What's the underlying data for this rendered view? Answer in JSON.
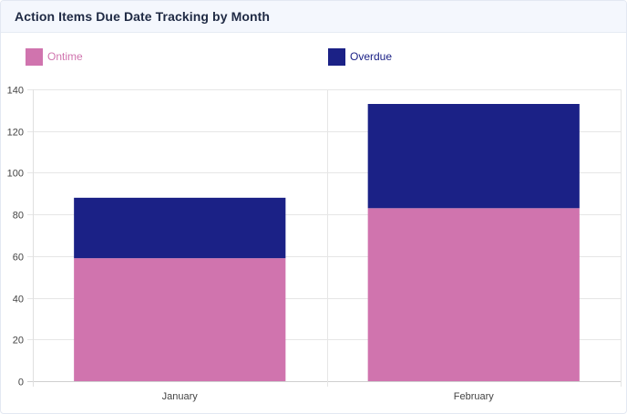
{
  "header": {
    "title": "Action Items Due Date Tracking by Month"
  },
  "chart_data": {
    "type": "bar",
    "stacked": true,
    "categories": [
      "January",
      "February"
    ],
    "series": [
      {
        "name": "Ontime",
        "values": [
          59,
          83
        ],
        "color": "#d074ae"
      },
      {
        "name": "Overdue",
        "values": [
          29,
          50
        ],
        "color": "#1b2186"
      }
    ],
    "ylim": [
      0,
      140
    ],
    "yticks": [
      0,
      20,
      40,
      60,
      80,
      100,
      120,
      140
    ],
    "grid": true,
    "legend_position": "top"
  }
}
